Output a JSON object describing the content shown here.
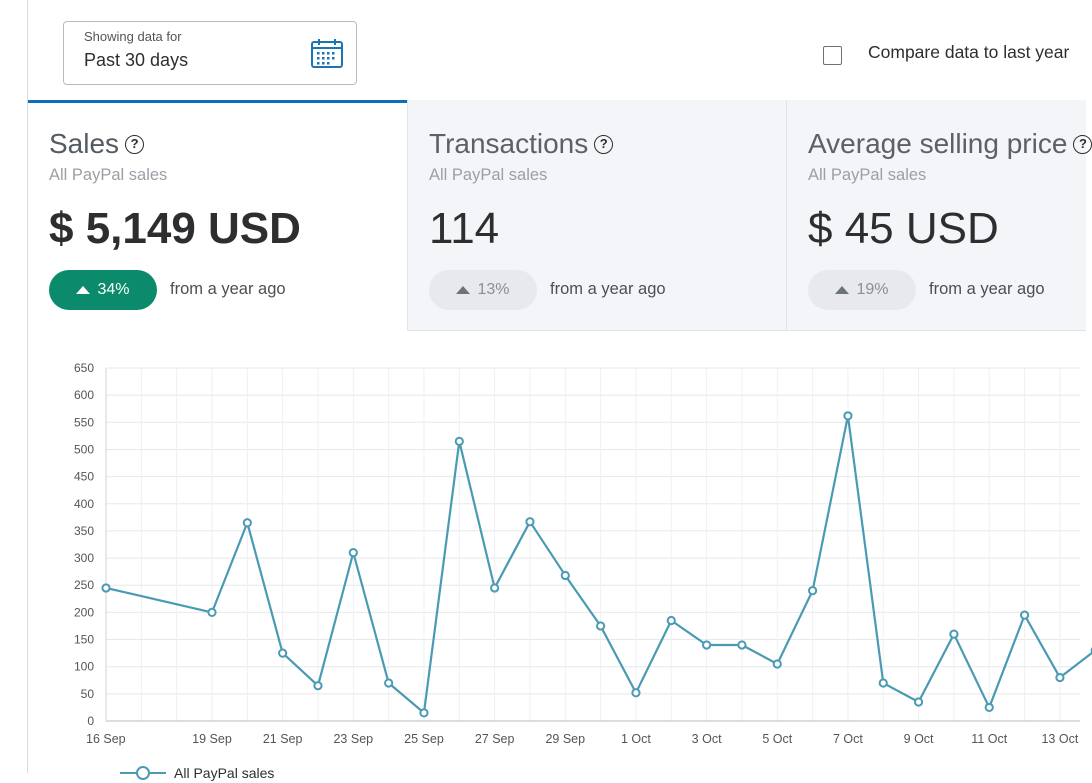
{
  "filter": {
    "label": "Showing data for",
    "value": "Past 30 days",
    "icon": "calendar-icon"
  },
  "compare": {
    "label": "Compare data to last year",
    "checked": false
  },
  "cards": [
    {
      "title": "Sales",
      "subtitle": "All PayPal sales",
      "value": "$ 5,149 USD",
      "change": "34%",
      "change_note": "from a year ago",
      "active": true
    },
    {
      "title": "Transactions",
      "subtitle": "All PayPal sales",
      "value": "114",
      "change": "13%",
      "change_note": "from a year ago",
      "active": false
    },
    {
      "title": "Average selling price",
      "subtitle": "All PayPal sales",
      "value": "$ 45 USD",
      "change": "19%",
      "change_note": "from a year ago",
      "active": false
    }
  ],
  "colors": {
    "accent": "#0d6fb8",
    "positive_badge": "#0b8a6c",
    "series_line": "#4a9ab4"
  },
  "chart_data": {
    "type": "line",
    "title": "",
    "xlabel": "",
    "ylabel": "",
    "ylim": [
      0,
      650
    ],
    "y_ticks": [
      "0",
      "50",
      "100",
      "150",
      "200",
      "250",
      "300",
      "350",
      "400",
      "450",
      "500",
      "550",
      "600",
      "650"
    ],
    "x_tick_labels": [
      "16 Sep",
      "19 Sep",
      "21 Sep",
      "23 Sep",
      "25 Sep",
      "27 Sep",
      "29 Sep",
      "1 Oct",
      "3 Oct",
      "5 Oct",
      "7 Oct",
      "9 Oct",
      "11 Oct",
      "13 Oct"
    ],
    "x_ticks_day_index": [
      0,
      3,
      5,
      7,
      9,
      11,
      13,
      15,
      17,
      19,
      21,
      23,
      25,
      27
    ],
    "grid": true,
    "series": [
      {
        "name": "All PayPal sales",
        "points": [
          {
            "date": "16 Sep",
            "day_index": 0,
            "value": 245
          },
          {
            "date": "19 Sep",
            "day_index": 3,
            "value": 200
          },
          {
            "date": "20 Sep",
            "day_index": 4,
            "value": 365
          },
          {
            "date": "21 Sep",
            "day_index": 5,
            "value": 125
          },
          {
            "date": "22 Sep",
            "day_index": 6,
            "value": 65
          },
          {
            "date": "23 Sep",
            "day_index": 7,
            "value": 310
          },
          {
            "date": "24 Sep",
            "day_index": 8,
            "value": 70
          },
          {
            "date": "25 Sep",
            "day_index": 9,
            "value": 15
          },
          {
            "date": "26 Sep",
            "day_index": 10,
            "value": 515
          },
          {
            "date": "27 Sep",
            "day_index": 11,
            "value": 245
          },
          {
            "date": "28 Sep",
            "day_index": 12,
            "value": 367
          },
          {
            "date": "29 Sep",
            "day_index": 13,
            "value": 268
          },
          {
            "date": "30 Sep",
            "day_index": 14,
            "value": 175
          },
          {
            "date": "1 Oct",
            "day_index": 15,
            "value": 52
          },
          {
            "date": "2 Oct",
            "day_index": 16,
            "value": 185
          },
          {
            "date": "3 Oct",
            "day_index": 17,
            "value": 140
          },
          {
            "date": "4 Oct",
            "day_index": 18,
            "value": 140
          },
          {
            "date": "5 Oct",
            "day_index": 19,
            "value": 105
          },
          {
            "date": "6 Oct",
            "day_index": 20,
            "value": 240
          },
          {
            "date": "7 Oct",
            "day_index": 21,
            "value": 562
          },
          {
            "date": "8 Oct",
            "day_index": 22,
            "value": 70
          },
          {
            "date": "9 Oct",
            "day_index": 23,
            "value": 35
          },
          {
            "date": "10 Oct",
            "day_index": 24,
            "value": 160
          },
          {
            "date": "11 Oct",
            "day_index": 25,
            "value": 25
          },
          {
            "date": "12 Oct",
            "day_index": 26,
            "value": 195
          },
          {
            "date": "13 Oct",
            "day_index": 27,
            "value": 80
          },
          {
            "date": "14 Oct",
            "day_index": 28,
            "value": 130
          }
        ]
      }
    ],
    "legend_position": "bottom-left"
  }
}
